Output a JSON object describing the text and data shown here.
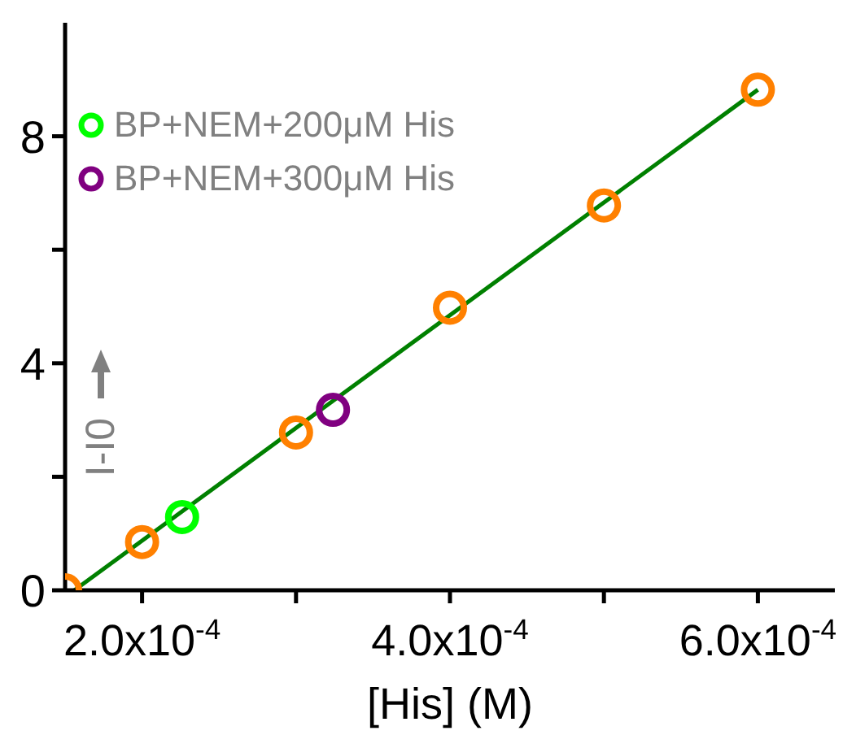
{
  "chart_data": {
    "type": "scatter",
    "xlabel": "[His] (M)",
    "ylabel": "I-I0",
    "xlim": [
      0.00015,
      0.00065
    ],
    "xticks": [
      {
        "value": 0.0002,
        "label": "2.0x10$^{-4}$"
      },
      {
        "value": 0.0003,
        "label": null
      },
      {
        "value": 0.0004,
        "label": "4.0x10$^{-4}$"
      },
      {
        "value": 0.0005,
        "label": null
      },
      {
        "value": 0.0006,
        "label": "6.0x10$^{-4}$"
      }
    ],
    "ylim": [
      0,
      10
    ],
    "yticks": [
      0,
      {
        "value": 2,
        "label": null
      },
      4,
      {
        "value": 6,
        "label": null
      },
      8
    ],
    "marker": "circle",
    "legend": "top left",
    "series": [
      {
        "color": "#ff8000",
        "x": [
          0.00015,
          0.0002,
          0.0003,
          0.0004,
          0.0005,
          0.0006
        ],
        "values": [
          0,
          0.85,
          2.78,
          4.98,
          6.78,
          8.82
        ]
      },
      {
        "name": "BP+NEM+200μM His",
        "color": "#00ff00",
        "x": [
          0.000226
        ],
        "values": [
          1.29
        ]
      },
      {
        "name": "BP+NEM+300μM His",
        "color": "#800080",
        "x": [
          0.000324
        ],
        "values": [
          3.18
        ]
      },
      {
        "type": "line",
        "color": "#008000",
        "marker": "none",
        "x": [
          0.000156,
          0.0006
        ],
        "values": [
          0,
          8.82
        ]
      }
    ]
  }
}
